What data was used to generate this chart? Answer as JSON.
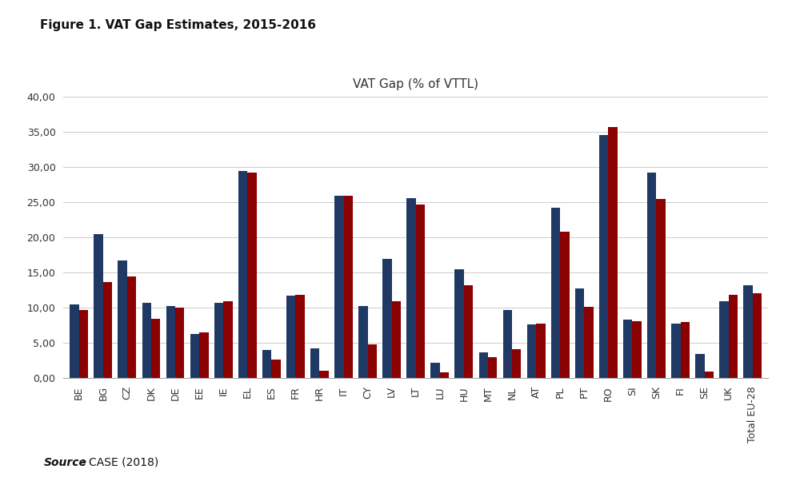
{
  "title_fig": "Figure 1. VAT Gap Estimates, 2015-2016",
  "title_ax": "VAT Gap (% of VTTL)",
  "categories": [
    "BE",
    "BG",
    "CZ",
    "DK",
    "DE",
    "EE",
    "IE",
    "EL",
    "ES",
    "FR",
    "HR",
    "IT",
    "CY",
    "LV",
    "LT",
    "LU",
    "HU",
    "MT",
    "NL",
    "AT",
    "PL",
    "PT",
    "RO",
    "SI",
    "SK",
    "FI",
    "SE",
    "UK",
    "Total EU-28"
  ],
  "values_2015": [
    10.5,
    20.5,
    16.8,
    10.7,
    10.3,
    6.3,
    10.7,
    29.5,
    4.0,
    11.8,
    4.2,
    26.0,
    10.3,
    17.0,
    25.6,
    2.2,
    15.5,
    3.7,
    9.7,
    7.7,
    24.3,
    12.8,
    34.6,
    8.3,
    29.3,
    7.8,
    3.5,
    11.0,
    13.2
  ],
  "values_2016": [
    9.7,
    13.7,
    14.5,
    8.5,
    10.1,
    6.5,
    11.0,
    29.2,
    2.7,
    11.9,
    1.1,
    26.0,
    4.8,
    11.0,
    24.7,
    0.9,
    13.2,
    3.0,
    4.1,
    7.8,
    20.8,
    10.2,
    35.7,
    8.1,
    25.5,
    8.0,
    1.0,
    11.9,
    12.1
  ],
  "color_2015": "#1f3864",
  "color_2016": "#8b0000",
  "ylim": [
    0,
    40
  ],
  "yticks": [
    0,
    5,
    10,
    15,
    20,
    25,
    30,
    35,
    40
  ],
  "background_color": "#ffffff",
  "grid_color": "#cccccc"
}
